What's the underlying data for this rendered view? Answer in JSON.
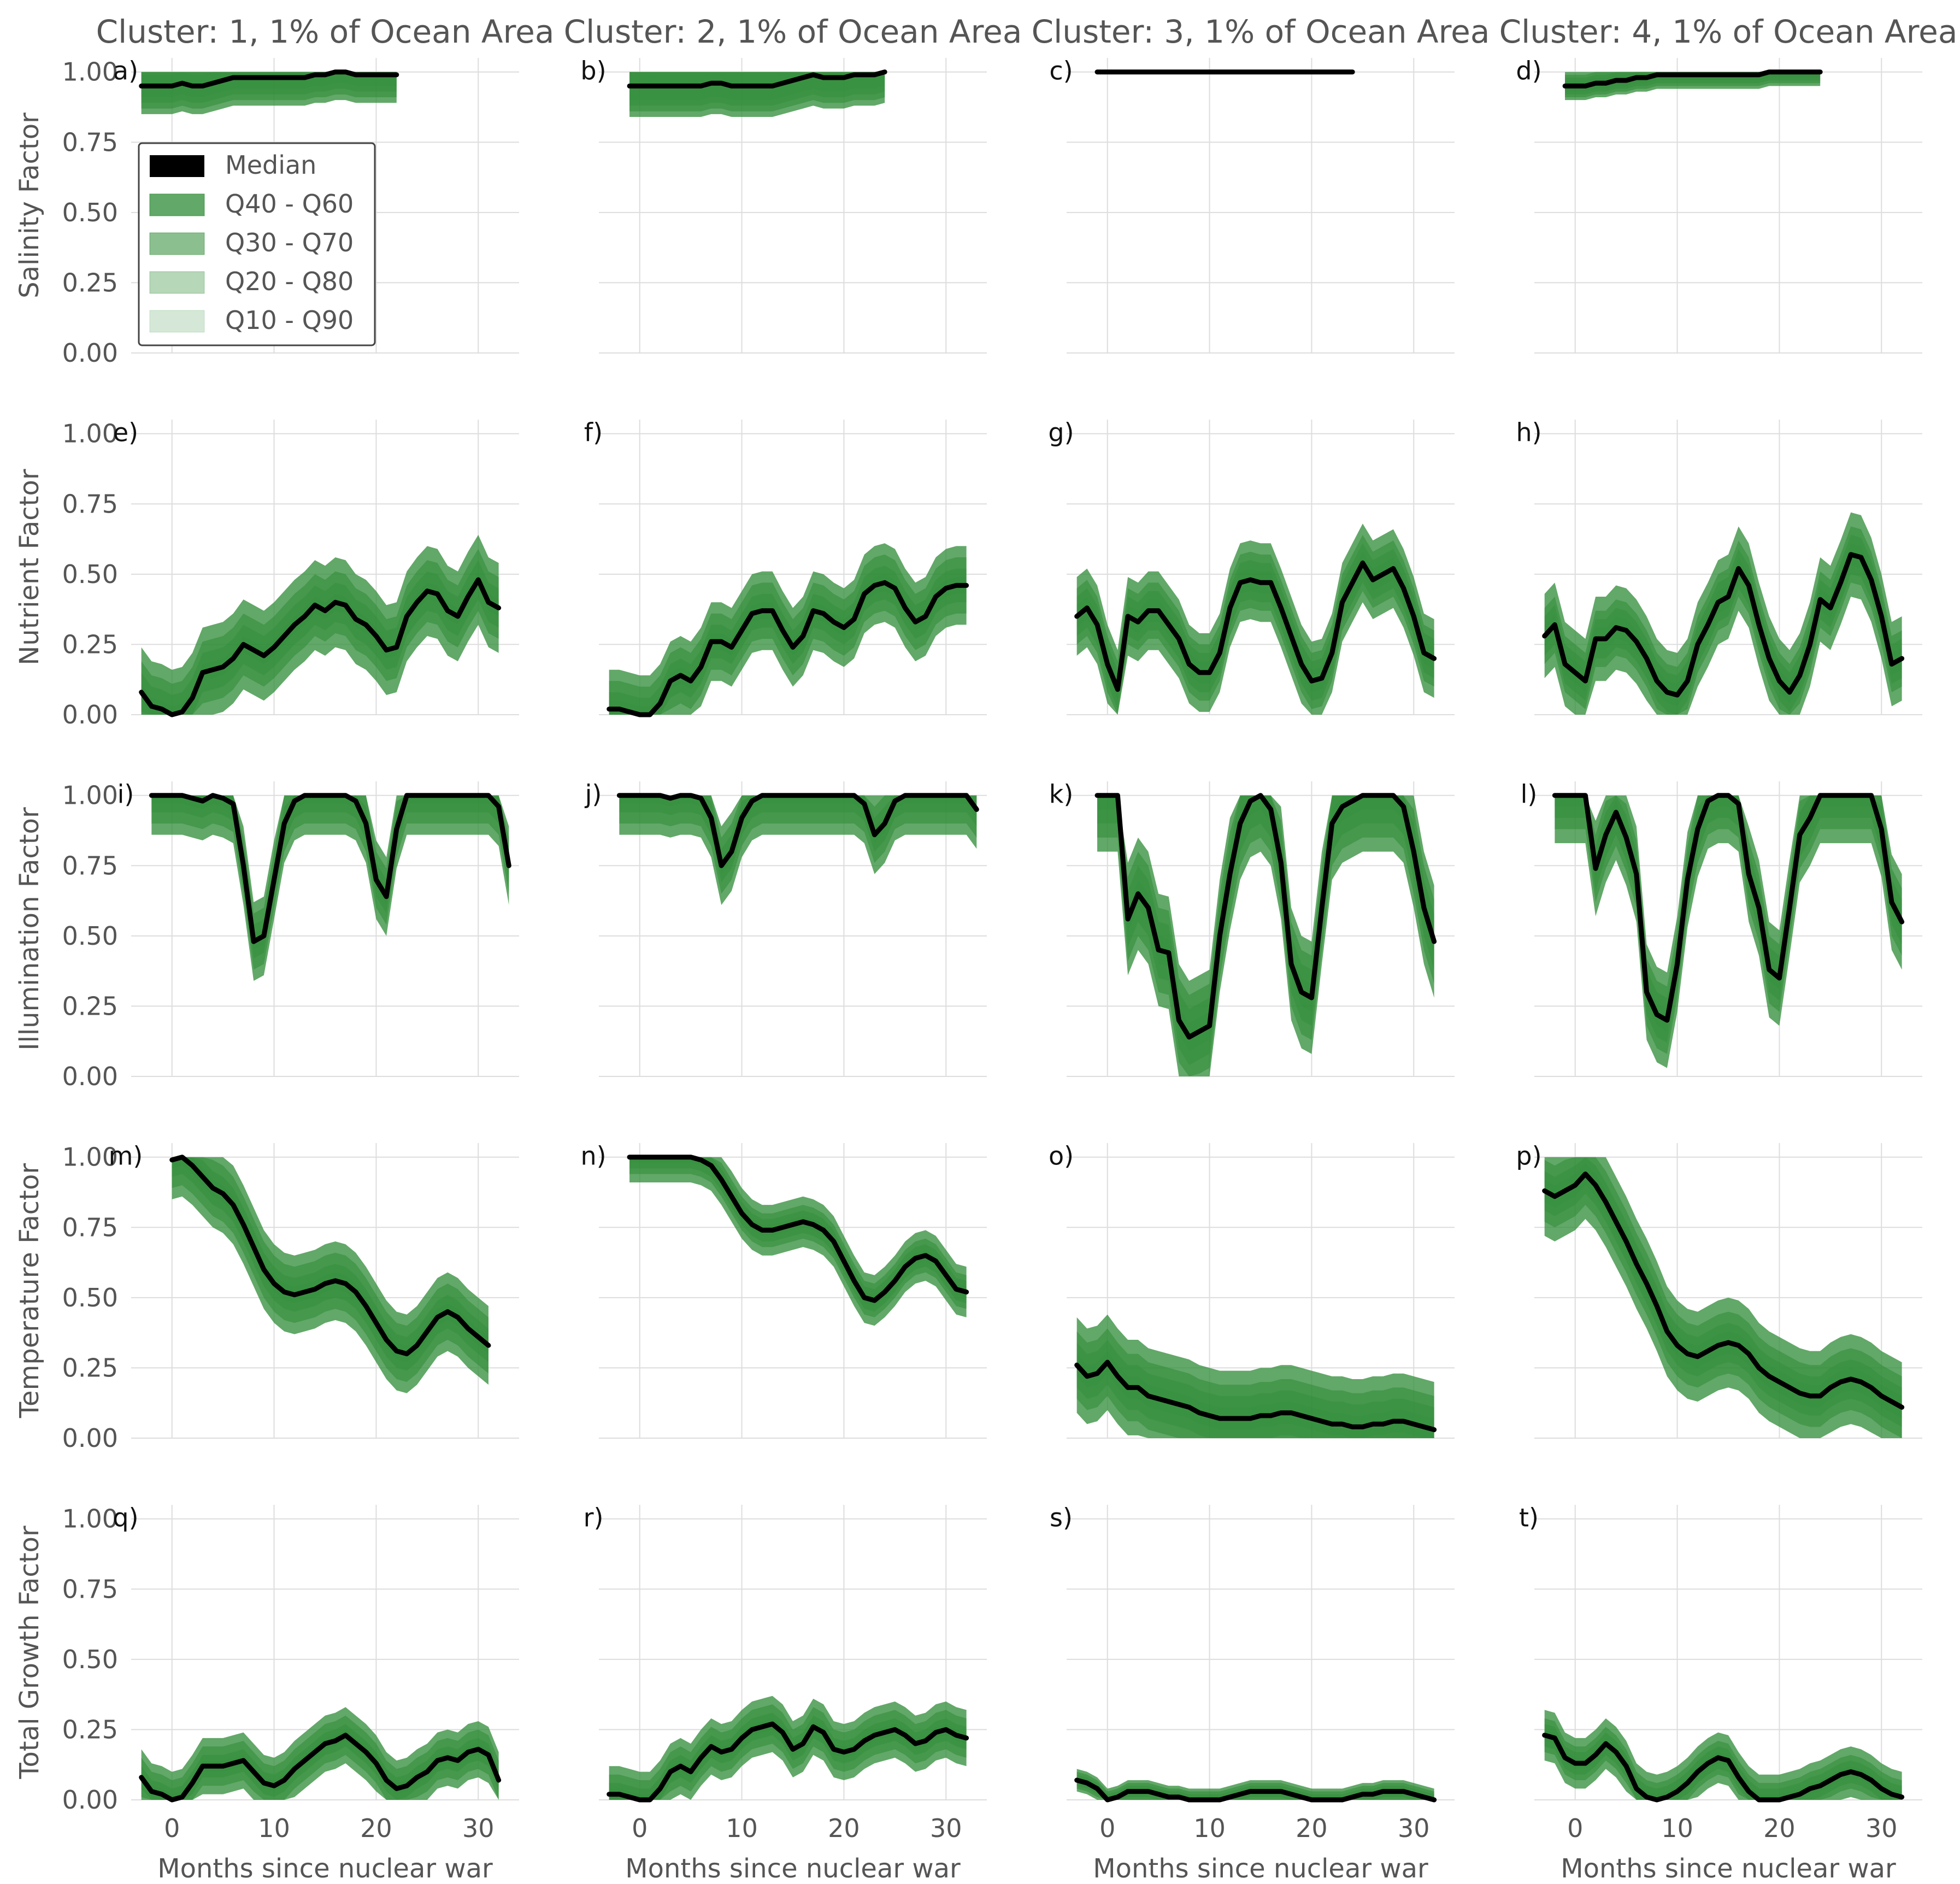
{
  "chart_data": {
    "type": "area",
    "x_range": [
      -4,
      34
    ],
    "y_range": [
      0,
      1.05
    ],
    "yticks": [
      "0.00",
      "0.25",
      "0.50",
      "0.75",
      "1.00"
    ],
    "xticks": [
      "0",
      "10",
      "20",
      "30"
    ],
    "grid": true,
    "columns": [
      "Cluster: 1, 1% of Ocean Area",
      "Cluster: 2, 1% of Ocean Area",
      "Cluster: 3, 1% of Ocean Area",
      "Cluster: 4, 1% of Ocean Area"
    ],
    "rows": [
      "Salinity Factor",
      "Nutrient Factor",
      "Illumination Factor",
      "Temperature Factor",
      "Total Growth Factor"
    ],
    "xlabel": "Months since nuclear war",
    "legend": {
      "position": "upper-left of panel a",
      "entries": [
        {
          "label": "Median",
          "color": "#000000",
          "opacity": 1
        },
        {
          "label": "Q40 - Q60",
          "color": "#2e8b35",
          "opacity": 0.75
        },
        {
          "label": "Q30 - Q70",
          "color": "#2e8b35",
          "opacity": 0.55
        },
        {
          "label": "Q20 - Q80",
          "color": "#2e8b35",
          "opacity": 0.35
        },
        {
          "label": "Q10 - Q90",
          "color": "#2e8b35",
          "opacity": 0.2
        }
      ]
    },
    "colors": {
      "band": "#2e8b35",
      "median": "#000000",
      "grid": "#dddddd",
      "text": "#555555"
    },
    "panels": [
      {
        "label": "a)",
        "row": 0,
        "col": 0,
        "x_start": -3,
        "median": [
          0.95,
          0.95,
          0.95,
          0.95,
          0.96,
          0.95,
          0.95,
          0.96,
          0.97,
          0.98,
          0.98,
          0.98,
          0.98,
          0.98,
          0.98,
          0.98,
          0.98,
          0.99,
          0.99,
          1.0,
          1.0,
          0.99,
          0.99,
          0.99,
          0.99,
          0.99
        ],
        "spreads": [
          0.04,
          0.06,
          0.08,
          0.1
        ]
      },
      {
        "label": "b)",
        "row": 0,
        "col": 1,
        "x_start": -1,
        "median": [
          0.95,
          0.95,
          0.95,
          0.95,
          0.95,
          0.95,
          0.95,
          0.95,
          0.96,
          0.96,
          0.95,
          0.95,
          0.95,
          0.95,
          0.95,
          0.96,
          0.97,
          0.98,
          0.99,
          0.98,
          0.98,
          0.98,
          0.99,
          0.99,
          0.99,
          1.0
        ],
        "spreads": [
          0.05,
          0.07,
          0.09,
          0.11
        ]
      },
      {
        "label": "c)",
        "row": 0,
        "col": 2,
        "x_start": -1,
        "median": [
          1.0,
          1.0,
          1.0,
          1.0,
          1.0,
          1.0,
          1.0,
          1.0,
          1.0,
          1.0,
          1.0,
          1.0,
          1.0,
          1.0,
          1.0,
          1.0,
          1.0,
          1.0,
          1.0,
          1.0,
          1.0,
          1.0,
          1.0,
          1.0,
          1.0,
          1.0
        ],
        "spreads": [
          0,
          0,
          0,
          0
        ]
      },
      {
        "label": "d)",
        "row": 0,
        "col": 3,
        "x_start": -1,
        "median": [
          0.95,
          0.95,
          0.95,
          0.96,
          0.96,
          0.97,
          0.97,
          0.98,
          0.98,
          0.99,
          0.99,
          0.99,
          0.99,
          0.99,
          0.99,
          0.99,
          0.99,
          0.99,
          0.99,
          0.99,
          1.0,
          1.0,
          1.0,
          1.0,
          1.0,
          1.0
        ],
        "spreads": [
          0.02,
          0.03,
          0.04,
          0.05
        ]
      },
      {
        "label": "e)",
        "row": 1,
        "col": 0,
        "x_start": -3,
        "median": [
          0.08,
          0.03,
          0.02,
          0.0,
          0.01,
          0.06,
          0.15,
          0.16,
          0.17,
          0.2,
          0.25,
          0.23,
          0.21,
          0.24,
          0.28,
          0.32,
          0.35,
          0.39,
          0.37,
          0.4,
          0.39,
          0.34,
          0.32,
          0.28,
          0.23,
          0.24,
          0.35,
          0.4,
          0.44,
          0.43,
          0.37,
          0.35,
          0.42,
          0.48,
          0.4,
          0.38
        ],
        "spreads": [
          0.03,
          0.07,
          0.11,
          0.16
        ]
      },
      {
        "label": "f)",
        "row": 1,
        "col": 1,
        "x_start": -3,
        "median": [
          0.02,
          0.02,
          0.01,
          0.0,
          0.0,
          0.04,
          0.12,
          0.14,
          0.12,
          0.17,
          0.26,
          0.26,
          0.24,
          0.3,
          0.36,
          0.37,
          0.37,
          0.3,
          0.24,
          0.28,
          0.37,
          0.36,
          0.33,
          0.31,
          0.34,
          0.43,
          0.46,
          0.47,
          0.45,
          0.38,
          0.33,
          0.35,
          0.42,
          0.45,
          0.46,
          0.46
        ],
        "spreads": [
          0.03,
          0.06,
          0.1,
          0.14
        ]
      },
      {
        "label": "g)",
        "row": 1,
        "col": 2,
        "x_start": -3,
        "median": [
          0.35,
          0.38,
          0.32,
          0.18,
          0.09,
          0.35,
          0.33,
          0.37,
          0.37,
          0.32,
          0.27,
          0.18,
          0.15,
          0.15,
          0.22,
          0.38,
          0.47,
          0.48,
          0.47,
          0.47,
          0.38,
          0.28,
          0.18,
          0.12,
          0.13,
          0.22,
          0.4,
          0.47,
          0.54,
          0.48,
          0.5,
          0.52,
          0.45,
          0.35,
          0.22,
          0.2
        ],
        "spreads": [
          0.04,
          0.07,
          0.1,
          0.14
        ]
      },
      {
        "label": "h)",
        "row": 1,
        "col": 3,
        "x_start": -3,
        "median": [
          0.28,
          0.32,
          0.18,
          0.15,
          0.12,
          0.27,
          0.27,
          0.31,
          0.3,
          0.26,
          0.2,
          0.12,
          0.08,
          0.07,
          0.12,
          0.25,
          0.32,
          0.4,
          0.42,
          0.52,
          0.46,
          0.32,
          0.2,
          0.12,
          0.08,
          0.14,
          0.25,
          0.41,
          0.38,
          0.47,
          0.57,
          0.56,
          0.48,
          0.35,
          0.18,
          0.2
        ],
        "spreads": [
          0.04,
          0.07,
          0.1,
          0.15
        ]
      },
      {
        "label": "i)",
        "row": 2,
        "col": 0,
        "x_start": -2,
        "median": [
          1.0,
          1.0,
          1.0,
          1.0,
          0.99,
          0.98,
          1.0,
          0.99,
          0.97,
          0.75,
          0.48,
          0.5,
          0.7,
          0.9,
          0.98,
          1.0,
          1.0,
          1.0,
          1.0,
          1.0,
          0.98,
          0.9,
          0.7,
          0.64,
          0.88,
          1.0,
          1.0,
          1.0,
          1.0,
          1.0,
          1.0,
          1.0,
          1.0,
          1.0,
          0.96,
          0.75
        ],
        "spreads": [
          0.03,
          0.06,
          0.1,
          0.14
        ]
      },
      {
        "label": "j)",
        "row": 2,
        "col": 1,
        "x_start": -2,
        "median": [
          1.0,
          1.0,
          1.0,
          1.0,
          1.0,
          0.99,
          1.0,
          1.0,
          0.99,
          0.92,
          0.75,
          0.8,
          0.92,
          0.98,
          1.0,
          1.0,
          1.0,
          1.0,
          1.0,
          1.0,
          1.0,
          1.0,
          1.0,
          1.0,
          0.97,
          0.86,
          0.9,
          0.98,
          1.0,
          1.0,
          1.0,
          1.0,
          1.0,
          1.0,
          1.0,
          0.95
        ],
        "spreads": [
          0.03,
          0.06,
          0.1,
          0.14
        ]
      },
      {
        "label": "k)",
        "row": 2,
        "col": 2,
        "x_start": -1,
        "median": [
          1.0,
          1.0,
          1.0,
          0.56,
          0.65,
          0.6,
          0.45,
          0.44,
          0.2,
          0.14,
          0.16,
          0.18,
          0.5,
          0.72,
          0.9,
          0.98,
          1.0,
          0.95,
          0.76,
          0.4,
          0.3,
          0.28,
          0.6,
          0.9,
          0.96,
          0.98,
          1.0,
          1.0,
          1.0,
          1.0,
          0.96,
          0.8,
          0.6,
          0.48
        ],
        "spreads": [
          0.05,
          0.1,
          0.15,
          0.2
        ]
      },
      {
        "label": "l)",
        "row": 2,
        "col": 3,
        "x_start": -2,
        "median": [
          1.0,
          1.0,
          1.0,
          1.0,
          0.74,
          0.86,
          0.94,
          0.85,
          0.72,
          0.3,
          0.22,
          0.2,
          0.4,
          0.7,
          0.88,
          0.98,
          1.0,
          1.0,
          0.97,
          0.72,
          0.6,
          0.38,
          0.35,
          0.6,
          0.86,
          0.92,
          1.0,
          1.0,
          1.0,
          1.0,
          1.0,
          1.0,
          0.88,
          0.62,
          0.55
        ],
        "spreads": [
          0.04,
          0.08,
          0.12,
          0.17
        ]
      },
      {
        "label": "m)",
        "row": 3,
        "col": 0,
        "x_start": 0,
        "median": [
          0.99,
          1.0,
          0.97,
          0.93,
          0.89,
          0.87,
          0.83,
          0.76,
          0.68,
          0.6,
          0.55,
          0.52,
          0.51,
          0.52,
          0.53,
          0.55,
          0.56,
          0.55,
          0.52,
          0.47,
          0.41,
          0.35,
          0.31,
          0.3,
          0.33,
          0.38,
          0.43,
          0.45,
          0.43,
          0.39,
          0.36,
          0.33
        ],
        "spreads": [
          0.03,
          0.06,
          0.1,
          0.14
        ]
      },
      {
        "label": "n)",
        "row": 3,
        "col": 1,
        "x_start": -1,
        "median": [
          1.0,
          1.0,
          1.0,
          1.0,
          1.0,
          1.0,
          1.0,
          0.99,
          0.97,
          0.92,
          0.86,
          0.8,
          0.76,
          0.74,
          0.74,
          0.75,
          0.76,
          0.77,
          0.76,
          0.74,
          0.7,
          0.63,
          0.56,
          0.5,
          0.49,
          0.52,
          0.56,
          0.61,
          0.64,
          0.65,
          0.63,
          0.58,
          0.53,
          0.52
        ],
        "spreads": [
          0.02,
          0.04,
          0.06,
          0.09
        ]
      },
      {
        "label": "o)",
        "row": 3,
        "col": 2,
        "x_start": -3,
        "median": [
          0.26,
          0.22,
          0.23,
          0.27,
          0.22,
          0.18,
          0.18,
          0.15,
          0.14,
          0.13,
          0.12,
          0.11,
          0.09,
          0.08,
          0.07,
          0.07,
          0.07,
          0.07,
          0.08,
          0.08,
          0.09,
          0.09,
          0.08,
          0.07,
          0.06,
          0.05,
          0.05,
          0.04,
          0.04,
          0.05,
          0.05,
          0.06,
          0.06,
          0.05,
          0.04,
          0.03
        ],
        "spreads": [
          0.04,
          0.08,
          0.12,
          0.17
        ]
      },
      {
        "label": "p)",
        "row": 3,
        "col": 3,
        "x_start": -3,
        "median": [
          0.88,
          0.86,
          0.88,
          0.9,
          0.94,
          0.9,
          0.84,
          0.77,
          0.7,
          0.62,
          0.55,
          0.47,
          0.38,
          0.33,
          0.3,
          0.29,
          0.31,
          0.33,
          0.34,
          0.33,
          0.3,
          0.25,
          0.22,
          0.2,
          0.18,
          0.16,
          0.15,
          0.15,
          0.18,
          0.2,
          0.21,
          0.2,
          0.18,
          0.15,
          0.13,
          0.11
        ],
        "spreads": [
          0.04,
          0.07,
          0.11,
          0.16
        ]
      },
      {
        "label": "q)",
        "row": 4,
        "col": 0,
        "x_start": -3,
        "median": [
          0.08,
          0.03,
          0.02,
          0.0,
          0.01,
          0.06,
          0.12,
          0.12,
          0.12,
          0.13,
          0.14,
          0.1,
          0.06,
          0.05,
          0.07,
          0.11,
          0.14,
          0.17,
          0.2,
          0.21,
          0.23,
          0.2,
          0.17,
          0.13,
          0.07,
          0.04,
          0.05,
          0.08,
          0.1,
          0.14,
          0.15,
          0.14,
          0.17,
          0.18,
          0.16,
          0.07
        ],
        "spreads": [
          0.02,
          0.04,
          0.07,
          0.1
        ]
      },
      {
        "label": "r)",
        "row": 4,
        "col": 1,
        "x_start": -3,
        "median": [
          0.02,
          0.02,
          0.01,
          0.0,
          0.0,
          0.04,
          0.1,
          0.12,
          0.1,
          0.15,
          0.19,
          0.17,
          0.18,
          0.22,
          0.25,
          0.26,
          0.27,
          0.24,
          0.18,
          0.2,
          0.26,
          0.24,
          0.18,
          0.17,
          0.18,
          0.21,
          0.23,
          0.24,
          0.25,
          0.23,
          0.2,
          0.21,
          0.24,
          0.25,
          0.23,
          0.22
        ],
        "spreads": [
          0.02,
          0.04,
          0.07,
          0.1
        ]
      },
      {
        "label": "s)",
        "row": 4,
        "col": 2,
        "x_start": -3,
        "median": [
          0.07,
          0.06,
          0.04,
          0.0,
          0.01,
          0.03,
          0.03,
          0.03,
          0.02,
          0.01,
          0.01,
          0.0,
          0.0,
          0.0,
          0.0,
          0.01,
          0.02,
          0.03,
          0.03,
          0.03,
          0.03,
          0.02,
          0.01,
          0.0,
          0.0,
          0.0,
          0.0,
          0.01,
          0.02,
          0.02,
          0.03,
          0.03,
          0.03,
          0.02,
          0.01,
          0.0
        ],
        "spreads": [
          0.01,
          0.02,
          0.03,
          0.04
        ]
      },
      {
        "label": "t)",
        "row": 4,
        "col": 3,
        "x_start": -3,
        "median": [
          0.23,
          0.22,
          0.15,
          0.13,
          0.13,
          0.16,
          0.2,
          0.17,
          0.12,
          0.04,
          0.01,
          0.0,
          0.01,
          0.03,
          0.06,
          0.1,
          0.13,
          0.15,
          0.14,
          0.08,
          0.03,
          0.0,
          0.0,
          0.0,
          0.01,
          0.02,
          0.04,
          0.05,
          0.07,
          0.09,
          0.1,
          0.09,
          0.07,
          0.04,
          0.02,
          0.01
        ],
        "spreads": [
          0.02,
          0.04,
          0.06,
          0.09
        ]
      }
    ]
  }
}
